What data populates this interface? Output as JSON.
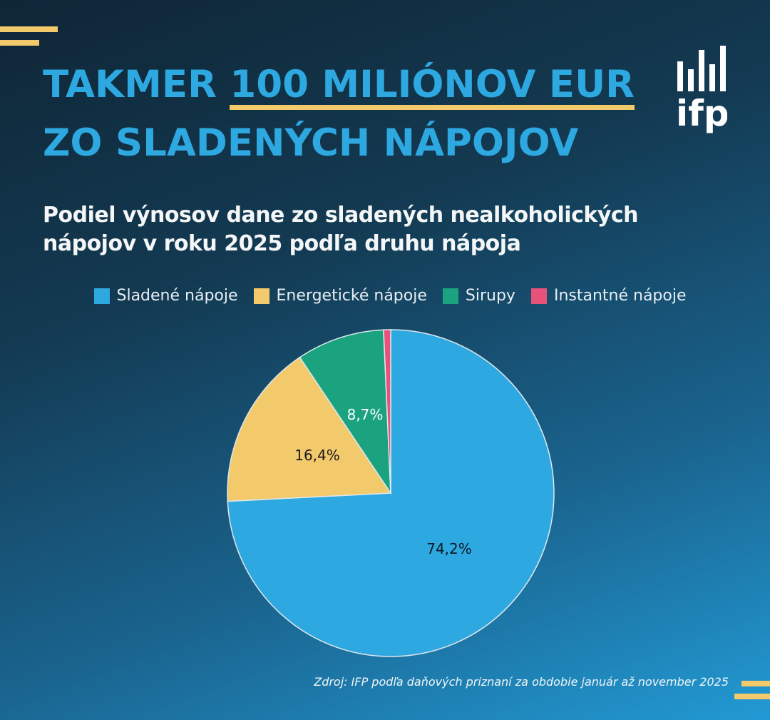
{
  "header": {
    "title_part1": "TAKMER ",
    "title_highlight": "100 MILIÓNOV EUR",
    "title_line2": "ZO SLADENÝCH NÁPOJOV",
    "logo_text": "ifp",
    "logo_icon": "bar-chart-logo-icon"
  },
  "subtitle_line1": "Podiel výnosov dane zo sladených nealkoholických",
  "subtitle_line2": "nápojov v roku 2025 podľa druhu nápoja",
  "legend": [
    {
      "label": "Sladené nápoje",
      "color": "#2ea8e0"
    },
    {
      "label": "Energetické nápoje",
      "color": "#f2c96b"
    },
    {
      "label": "Sirupy",
      "color": "#1ba37f"
    },
    {
      "label": "Instantné nápoje",
      "color": "#e8527a"
    }
  ],
  "labels": {
    "sladene": "74,2%",
    "energeticke": "16,4%",
    "sirupy": "8,7%"
  },
  "source": "Zdroj: IFP podľa daňových priznaní za obdobie január až november 2025",
  "colors": {
    "accent_yellow": "#f2c96b",
    "title_blue": "#2ea8e0"
  },
  "chart_data": {
    "type": "pie",
    "title": "Podiel výnosov dane zo sladených nealkoholických nápojov v roku 2025 podľa druhu nápoja",
    "categories": [
      "Sladené nápoje",
      "Energetické nápoje",
      "Sirupy",
      "Instantné nápoje"
    ],
    "values": [
      74.2,
      16.4,
      8.7,
      0.7
    ],
    "data_labels": [
      "74,2%",
      "16,4%",
      "8,7%",
      ""
    ],
    "colors": [
      "#2ea8e0",
      "#f2c96b",
      "#1ba37f",
      "#e8527a"
    ],
    "start_angle": "12 o'clock, clockwise",
    "legend_position": "top",
    "unit": "%"
  }
}
